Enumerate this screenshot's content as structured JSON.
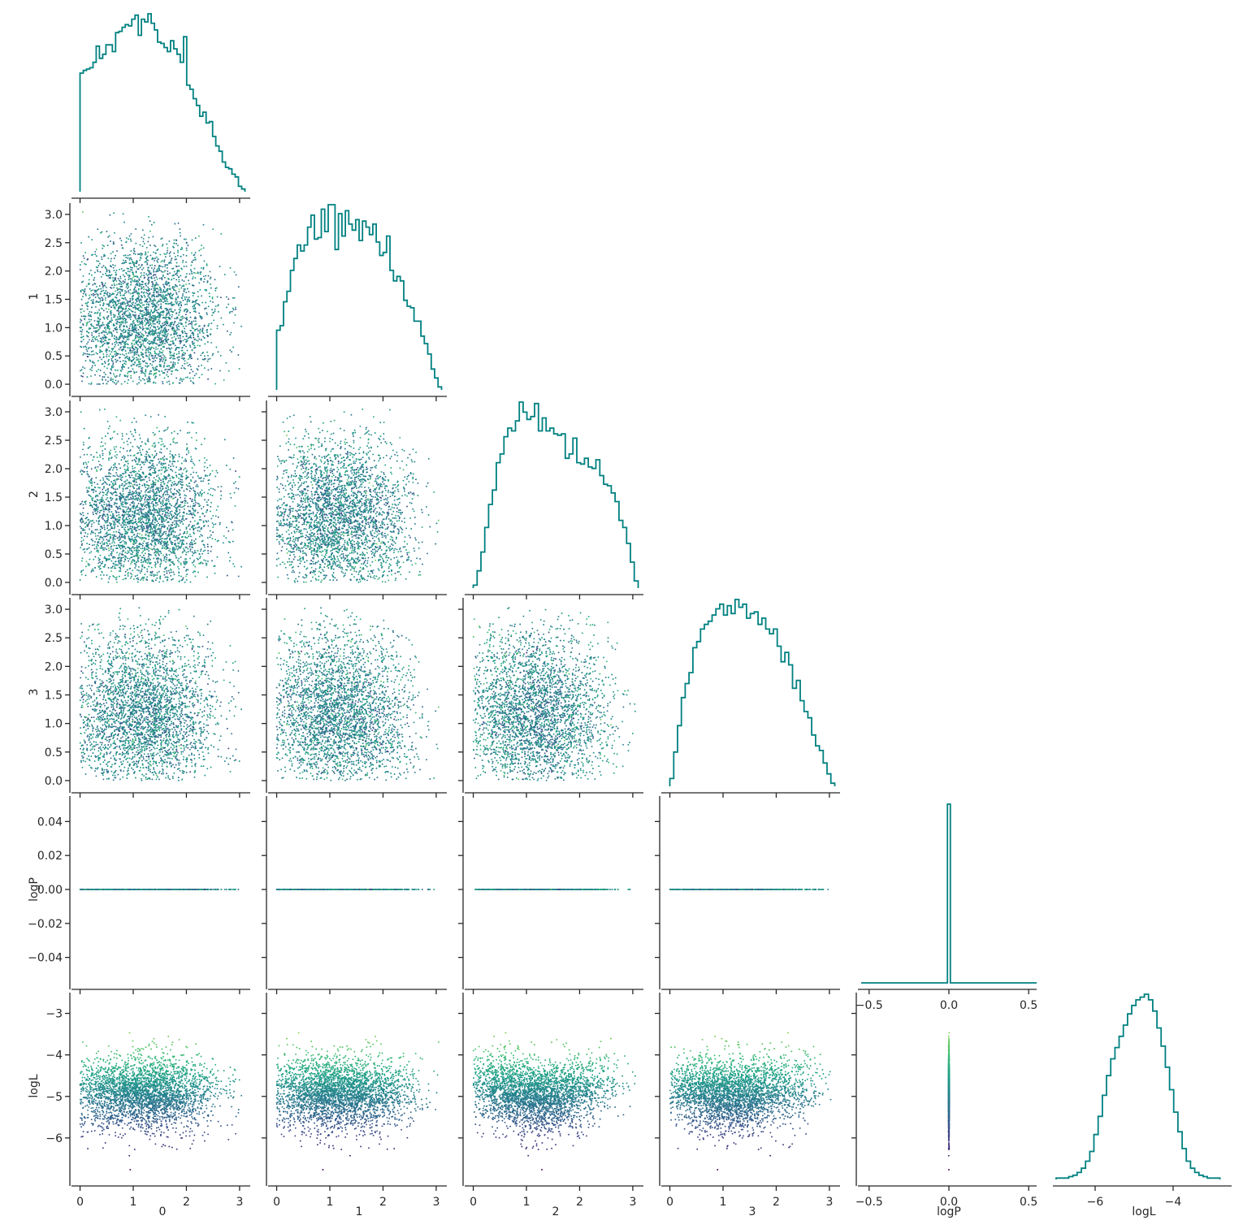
{
  "chart_data": {
    "type": "corner_plot",
    "variables": [
      "0",
      "1",
      "2",
      "3",
      "logP",
      "logL"
    ],
    "axis_labels": [
      "0",
      "1",
      "2",
      "3",
      "logP",
      "logL"
    ],
    "ranges": [
      [
        -0.1,
        3.2
      ],
      [
        -0.1,
        3.2
      ],
      [
        -0.1,
        3.2
      ],
      [
        -0.1,
        3.2
      ],
      [
        -0.55,
        0.55
      ],
      [
        -7.0,
        -2.5
      ]
    ],
    "ticks": {
      "x": [
        [
          {
            "v": 0,
            "t": "0"
          },
          {
            "v": 1,
            "t": "1"
          },
          {
            "v": 2,
            "t": "2"
          },
          {
            "v": 3,
            "t": "3"
          }
        ],
        [
          {
            "v": 0,
            "t": "0"
          },
          {
            "v": 1,
            "t": "1"
          },
          {
            "v": 2,
            "t": "2"
          },
          {
            "v": 3,
            "t": "3"
          }
        ],
        [
          {
            "v": 0,
            "t": "0"
          },
          {
            "v": 1,
            "t": "1"
          },
          {
            "v": 2,
            "t": "2"
          },
          {
            "v": 3,
            "t": "3"
          }
        ],
        [
          {
            "v": 0,
            "t": "0"
          },
          {
            "v": 1,
            "t": "1"
          },
          {
            "v": 2,
            "t": "2"
          },
          {
            "v": 3,
            "t": "3"
          }
        ],
        [
          {
            "v": -0.5,
            "t": "−0.5"
          },
          {
            "v": 0,
            "t": "0.0"
          },
          {
            "v": 0.5,
            "t": "0.5"
          }
        ],
        [
          {
            "v": -6,
            "t": "−6"
          },
          {
            "v": -4,
            "t": "−4"
          }
        ]
      ],
      "y": [
        [],
        [
          {
            "v": 0,
            "t": "0.0"
          },
          {
            "v": 0.5,
            "t": "0.5"
          },
          {
            "v": 1,
            "t": "1.0"
          },
          {
            "v": 1.5,
            "t": "1.5"
          },
          {
            "v": 2,
            "t": "2.0"
          },
          {
            "v": 2.5,
            "t": "2.5"
          },
          {
            "v": 3,
            "t": "3.0"
          }
        ],
        [
          {
            "v": 0,
            "t": "0.0"
          },
          {
            "v": 0.5,
            "t": "0.5"
          },
          {
            "v": 1,
            "t": "1.0"
          },
          {
            "v": 1.5,
            "t": "1.5"
          },
          {
            "v": 2,
            "t": "2.0"
          },
          {
            "v": 2.5,
            "t": "2.5"
          },
          {
            "v": 3,
            "t": "3.0"
          }
        ],
        [
          {
            "v": 0,
            "t": "0.0"
          },
          {
            "v": 0.5,
            "t": "0.5"
          },
          {
            "v": 1,
            "t": "1.0"
          },
          {
            "v": 1.5,
            "t": "1.5"
          },
          {
            "v": 2,
            "t": "2.0"
          },
          {
            "v": 2.5,
            "t": "2.5"
          },
          {
            "v": 3,
            "t": "3.0"
          }
        ],
        [
          {
            "v": 0.04,
            "t": "0.04"
          },
          {
            "v": 0.02,
            "t": "0.02"
          },
          {
            "v": 0,
            "t": "0.00"
          },
          {
            "v": -0.02,
            "t": "−0.02"
          },
          {
            "v": -0.04,
            "t": "−0.04"
          }
        ],
        [
          {
            "v": -3,
            "t": "−3"
          },
          {
            "v": -4,
            "t": "−4"
          },
          {
            "v": -5,
            "t": "−5"
          },
          {
            "v": -6,
            "t": "−6"
          }
        ]
      ]
    },
    "logP_yrange": [
      -0.055,
      0.055
    ],
    "histograms": {
      "0": {
        "range": [
          0.0,
          3.1
        ],
        "counts": [
          88,
          90,
          91,
          92,
          96,
          108,
          99,
          102,
          109,
          109,
          104,
          118,
          119,
          122,
          124,
          123,
          128,
          131,
          116,
          128,
          126,
          132,
          125,
          120,
          111,
          110,
          107,
          104,
          112,
          106,
          102,
          96,
          115,
          79,
          76,
          69,
          64,
          56,
          59,
          51,
          52,
          41,
          34,
          30,
          22,
          18,
          17,
          13,
          11,
          4,
          2
        ]
      },
      "1": {
        "range": [
          0.0,
          3.1
        ],
        "counts": [
          40,
          43,
          59,
          66,
          80,
          88,
          97,
          93,
          97,
          109,
          117,
          101,
          102,
          121,
          106,
          124,
          124,
          94,
          118,
          103,
          120,
          111,
          107,
          114,
          100,
          113,
          109,
          104,
          111,
          99,
          90,
          92,
          103,
          80,
          73,
          76,
          73,
          60,
          56,
          55,
          46,
          46,
          36,
          31,
          24,
          14,
          8,
          2
        ]
      },
      "2": {
        "range": [
          0.0,
          3.1
        ],
        "counts": [
          2,
          12,
          25,
          42,
          58,
          68,
          87,
          93,
          105,
          111,
          109,
          116,
          129,
          122,
          117,
          119,
          128,
          109,
          118,
          109,
          111,
          107,
          106,
          107,
          90,
          93,
          104,
          87,
          86,
          90,
          84,
          83,
          89,
          78,
          72,
          71,
          66,
          60,
          47,
          42,
          31,
          18,
          5
        ]
      },
      "3": {
        "range": [
          0.0,
          3.1
        ],
        "counts": [
          5,
          22,
          39,
          57,
          66,
          73,
          89,
          93,
          101,
          104,
          106,
          110,
          114,
          117,
          110,
          116,
          111,
          120,
          115,
          117,
          108,
          111,
          112,
          104,
          108,
          101,
          98,
          101,
          90,
          80,
          86,
          78,
          63,
          68,
          55,
          48,
          44,
          33,
          26,
          23,
          15,
          8,
          2
        ]
      },
      "logP": {
        "range": [
          -0.55,
          0.55
        ],
        "spike_at": 0.0
      },
      "logL": {
        "range": [
          -7.0,
          -2.8
        ],
        "counts": [
          1,
          1,
          1,
          2,
          3,
          5,
          8,
          13,
          20,
          32,
          45,
          60,
          74,
          86,
          94,
          102,
          110,
          118,
          124,
          128,
          130,
          132,
          128,
          120,
          108,
          95,
          80,
          64,
          48,
          34,
          22,
          13,
          8,
          5,
          3,
          2,
          1,
          1,
          1
        ]
      }
    },
    "sample_count": 3000,
    "colormap": "viridis",
    "color_by": "logL",
    "hist_color": "#008080",
    "axis_color": "#262626"
  }
}
